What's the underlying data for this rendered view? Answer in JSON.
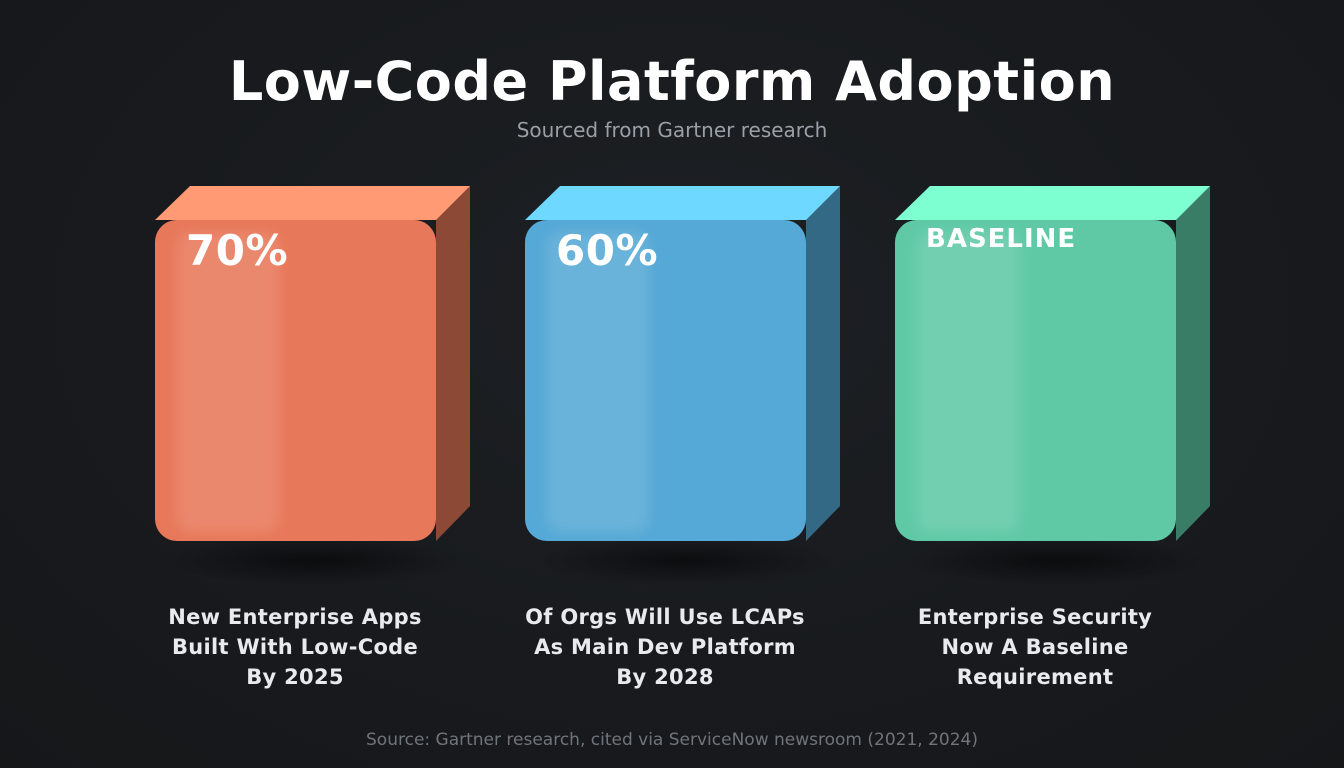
{
  "header": {
    "title": "Low-Code Platform Adoption",
    "subtitle": "Sourced from Gartner research"
  },
  "cards": [
    {
      "stat": "70%",
      "label_lines": [
        "New Enterprise Apps",
        "Built With Low-Code",
        "By 2025"
      ],
      "colors": {
        "front": "#e8785a",
        "top": "#ff9a74",
        "side": "#8c4a36"
      }
    },
    {
      "stat": "60%",
      "label_lines": [
        "Of Orgs Will Use LCAPs",
        "As Main Dev Platform",
        "By 2028"
      ],
      "colors": {
        "front": "#55a9d6",
        "top": "#6fd8ff",
        "side": "#346986"
      }
    },
    {
      "stat": "BASELINE",
      "label_lines": [
        "Enterprise Security",
        "Now A Baseline",
        "Requirement"
      ],
      "colors": {
        "front": "#5fc9a6",
        "top": "#7effd1",
        "side": "#3a7d66"
      }
    }
  ],
  "footer": {
    "source": "Source: Gartner research, cited via ServiceNow newsroom (2021, 2024)"
  }
}
